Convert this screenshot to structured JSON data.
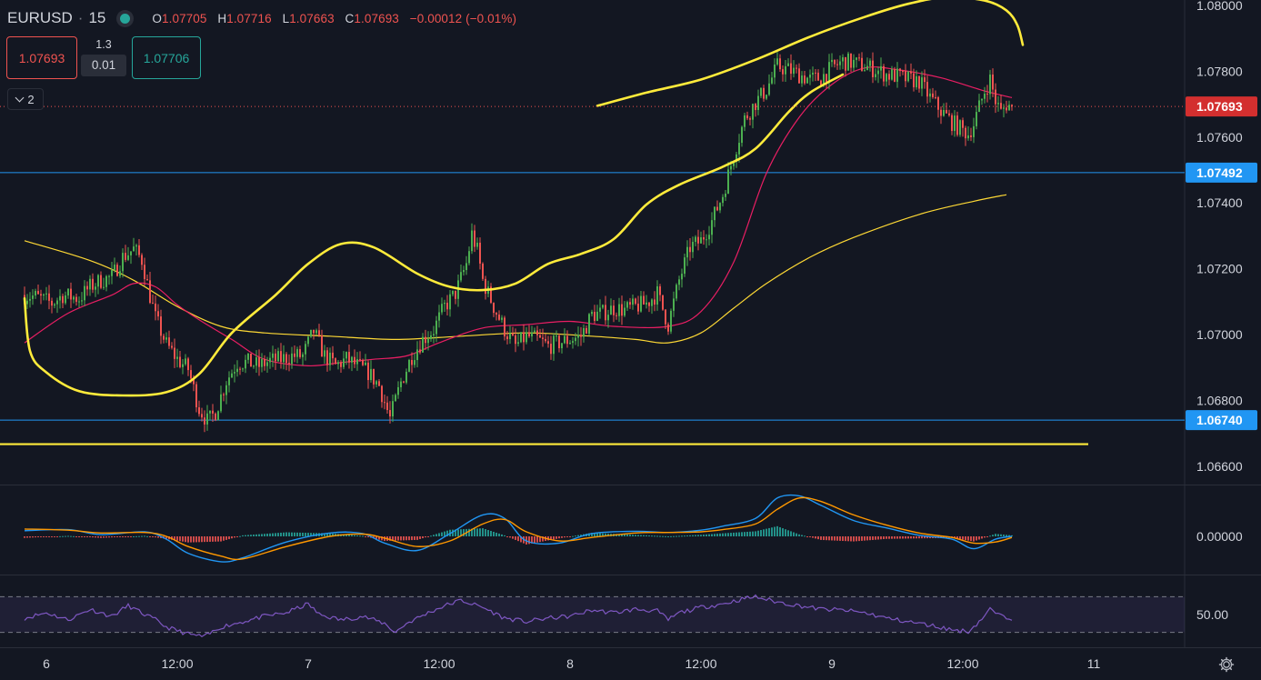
{
  "header": {
    "symbol": "EURUSD",
    "interval": "15",
    "ohlc": {
      "o_key": "O",
      "o": "1.07705",
      "h_key": "H",
      "h": "1.07716",
      "l_key": "L",
      "l": "1.07663",
      "c_key": "C",
      "c": "1.07693",
      "change": "−0.00012 (−0.01%)"
    },
    "bid": "1.07693",
    "spread_top": "1.3",
    "spread_bottom": "0.01",
    "ask": "1.07706",
    "indicators_collapsed": "2"
  },
  "colors": {
    "background": "#131722",
    "up": "#26a69a",
    "up_candle": "#4caf50",
    "down": "#ef5350",
    "drawing": "#ffeb3b",
    "hline": "#2196f3",
    "ma_fast": "#e91e63",
    "ma_slow": "#fdd835",
    "macd": "#2196f3",
    "signal": "#ff9800",
    "rsi": "#7e57c2"
  },
  "icons": {
    "settings": "gear-icon",
    "collapse": "chevron-down-icon"
  },
  "chart_data": [
    {
      "type": "candlestick",
      "title": "",
      "y_ticks": [
        "1.08000",
        "1.07800",
        "1.07600",
        "1.07400",
        "1.07200",
        "1.07000",
        "1.06800",
        "1.06600"
      ],
      "ylim": [
        1.0652,
        1.0801
      ],
      "x_ticks": [
        {
          "label": "6",
          "t": 0.0
        },
        {
          "label": "12:00",
          "t": 12.0
        },
        {
          "label": "7",
          "t": 24.0
        },
        {
          "label": "12:00",
          "t": 36.0
        },
        {
          "label": "8",
          "t": 48.0
        },
        {
          "label": "12:00",
          "t": 60.0
        },
        {
          "label": "9",
          "t": 72.0
        },
        {
          "label": "12:00",
          "t": 84.0
        },
        {
          "label": "11",
          "t": 96.0
        }
      ],
      "last_price": {
        "label": "1.07693",
        "value": 1.07693
      },
      "horizontal_lines": [
        {
          "label": "1.07492",
          "value": 1.07492
        },
        {
          "label": "1.06740",
          "value": 1.0674
        }
      ],
      "support_line_value": 1.06667,
      "price_path": [
        [
          -2.0,
          1.0712
        ],
        [
          -1.0,
          1.07115
        ],
        [
          0.5,
          1.07095
        ],
        [
          1.5,
          1.0712
        ],
        [
          3.0,
          1.0711
        ],
        [
          4.0,
          1.07145
        ],
        [
          5.0,
          1.07165
        ],
        [
          6.0,
          1.07175
        ],
        [
          7.0,
          1.07235
        ],
        [
          8.0,
          1.0726
        ],
        [
          8.8,
          1.07225
        ],
        [
          9.3,
          1.07145
        ],
        [
          10.0,
          1.0705
        ],
        [
          11.0,
          1.0697
        ],
        [
          12.0,
          1.06925
        ],
        [
          13.0,
          1.06895
        ],
        [
          14.0,
          1.06775
        ],
        [
          14.8,
          1.06735
        ],
        [
          15.5,
          1.06765
        ],
        [
          16.5,
          1.0686
        ],
        [
          17.5,
          1.06915
        ],
        [
          18.5,
          1.06915
        ],
        [
          19.5,
          1.06905
        ],
        [
          20.5,
          1.0692
        ],
        [
          21.5,
          1.06925
        ],
        [
          22.5,
          1.06935
        ],
        [
          23.5,
          1.06935
        ],
        [
          24.5,
          1.0701
        ],
        [
          25.5,
          1.06935
        ],
        [
          26.5,
          1.06905
        ],
        [
          27.5,
          1.06925
        ],
        [
          28.5,
          1.06905
        ],
        [
          29.5,
          1.06885
        ],
        [
          30.5,
          1.06845
        ],
        [
          31.5,
          1.06745
        ],
        [
          32.5,
          1.06855
        ],
        [
          33.5,
          1.06935
        ],
        [
          34.5,
          1.06985
        ],
        [
          35.5,
          1.07015
        ],
        [
          36.5,
          1.07085
        ],
        [
          37.5,
          1.07125
        ],
        [
          38.5,
          1.07215
        ],
        [
          39.0,
          1.07305
        ],
        [
          39.5,
          1.07255
        ],
        [
          40.0,
          1.07165
        ],
        [
          41.0,
          1.07085
        ],
        [
          42.0,
          1.07015
        ],
        [
          43.0,
          1.06965
        ],
        [
          44.0,
          1.06995
        ],
        [
          45.0,
          1.06985
        ],
        [
          46.0,
          1.06965
        ],
        [
          47.0,
          1.06975
        ],
        [
          48.0,
          1.06985
        ],
        [
          49.0,
          1.06995
        ],
        [
          50.0,
          1.0706
        ],
        [
          51.0,
          1.07065
        ],
        [
          52.0,
          1.0708
        ],
        [
          53.0,
          1.07075
        ],
        [
          54.0,
          1.07085
        ],
        [
          55.0,
          1.07095
        ],
        [
          56.0,
          1.07125
        ],
        [
          57.0,
          1.0703
        ],
        [
          58.0,
          1.07165
        ],
        [
          59.0,
          1.07265
        ],
        [
          60.0,
          1.07285
        ],
        [
          61.0,
          1.07345
        ],
        [
          62.0,
          1.07425
        ],
        [
          63.0,
          1.07545
        ],
        [
          64.0,
          1.07655
        ],
        [
          65.0,
          1.07705
        ],
        [
          66.0,
          1.07745
        ],
        [
          67.0,
          1.07815
        ],
        [
          68.0,
          1.07805
        ],
        [
          69.0,
          1.0779
        ],
        [
          70.0,
          1.07775
        ],
        [
          71.0,
          1.0778
        ],
        [
          72.0,
          1.0781
        ],
        [
          73.0,
          1.0783
        ],
        [
          74.0,
          1.07825
        ],
        [
          75.0,
          1.07815
        ],
        [
          76.0,
          1.07805
        ],
        [
          77.0,
          1.0779
        ],
        [
          78.0,
          1.07785
        ],
        [
          79.0,
          1.07775
        ],
        [
          80.0,
          1.0777
        ],
        [
          81.0,
          1.0772
        ],
        [
          82.0,
          1.0768
        ],
        [
          83.0,
          1.07645
        ],
        [
          84.0,
          1.0762
        ],
        [
          84.5,
          1.0761
        ],
        [
          85.0,
          1.0764
        ],
        [
          86.0,
          1.0774
        ],
        [
          86.5,
          1.07775
        ],
        [
          87.0,
          1.0771
        ],
        [
          87.5,
          1.07675
        ],
        [
          88.0,
          1.077
        ],
        [
          88.5,
          1.07693
        ]
      ],
      "ma_fast": [
        [
          -2.0,
          1.06975
        ],
        [
          2.0,
          1.07065
        ],
        [
          6.0,
          1.0712
        ],
        [
          8.0,
          1.07155
        ],
        [
          10.0,
          1.07145
        ],
        [
          12.0,
          1.0709
        ],
        [
          14.0,
          1.07045
        ],
        [
          17.0,
          1.06985
        ],
        [
          20.0,
          1.06925
        ],
        [
          24.0,
          1.06905
        ],
        [
          27.0,
          1.06915
        ],
        [
          30.0,
          1.06925
        ],
        [
          33.0,
          1.06935
        ],
        [
          36.0,
          1.06975
        ],
        [
          40.0,
          1.0702
        ],
        [
          44.0,
          1.0703
        ],
        [
          48.0,
          1.0704
        ],
        [
          52.0,
          1.07025
        ],
        [
          57.0,
          1.07025
        ],
        [
          60.0,
          1.0707
        ],
        [
          63.0,
          1.0722
        ],
        [
          66.0,
          1.0749
        ],
        [
          69.0,
          1.0766
        ],
        [
          72.0,
          1.0776
        ],
        [
          75.0,
          1.0781
        ],
        [
          78.0,
          1.07805
        ],
        [
          82.0,
          1.0778
        ],
        [
          86.0,
          1.0774
        ],
        [
          88.5,
          1.0772
        ]
      ],
      "ma_slow": [
        [
          -2.0,
          1.07285
        ],
        [
          4.0,
          1.07225
        ],
        [
          8.0,
          1.07165
        ],
        [
          12.0,
          1.07085
        ],
        [
          16.0,
          1.07025
        ],
        [
          20.0,
          1.07005
        ],
        [
          26.0,
          1.06995
        ],
        [
          32.0,
          1.06985
        ],
        [
          38.0,
          1.06995
        ],
        [
          44.0,
          1.07005
        ],
        [
          50.0,
          1.06995
        ],
        [
          54.0,
          1.06985
        ],
        [
          57.0,
          1.06975
        ],
        [
          60.0,
          1.07005
        ],
        [
          63.0,
          1.0708
        ],
        [
          66.0,
          1.07155
        ],
        [
          70.0,
          1.07235
        ],
        [
          74.0,
          1.07295
        ],
        [
          80.0,
          1.07365
        ],
        [
          85.0,
          1.07405
        ],
        [
          88.0,
          1.07425
        ]
      ],
      "drawing_curve": [
        [
          -2.0,
          1.0711
        ],
        [
          -1.5,
          1.0695
        ],
        [
          0.0,
          1.06885
        ],
        [
          3.0,
          1.06828
        ],
        [
          7.0,
          1.06815
        ],
        [
          11.0,
          1.06825
        ],
        [
          14.0,
          1.0688
        ],
        [
          17.0,
          1.07005
        ],
        [
          21.0,
          1.0712
        ],
        [
          24.0,
          1.07215
        ],
        [
          27.0,
          1.07275
        ],
        [
          30.0,
          1.07265
        ],
        [
          34.0,
          1.07185
        ],
        [
          37.0,
          1.07145
        ],
        [
          40.0,
          1.07135
        ],
        [
          43.0,
          1.07155
        ],
        [
          46.0,
          1.07215
        ],
        [
          49.0,
          1.07245
        ],
        [
          52.0,
          1.0729
        ],
        [
          55.0,
          1.07395
        ],
        [
          58.0,
          1.07455
        ],
        [
          62.0,
          1.0751
        ],
        [
          65.0,
          1.07565
        ],
        [
          68.0,
          1.07675
        ],
        [
          70.0,
          1.07735
        ],
        [
          73.0,
          1.0779
        ]
      ],
      "drawing_curve_top": [
        [
          50.5,
          1.07695
        ],
        [
          55.0,
          1.07735
        ],
        [
          60.0,
          1.07775
        ],
        [
          65.0,
          1.07835
        ],
        [
          70.0,
          1.07905
        ],
        [
          75.0,
          1.07965
        ],
        [
          79.0,
          1.08005
        ],
        [
          82.5,
          1.08025
        ],
        [
          86.0,
          1.08015
        ],
        [
          88.0,
          1.07985
        ],
        [
          89.0,
          1.0794
        ],
        [
          89.5,
          1.0788
        ]
      ]
    },
    {
      "type": "line",
      "title": "",
      "y_ticks": [
        "0.00000"
      ],
      "series": [],
      "macd": [
        [
          -2.0,
          0.1
        ],
        [
          2.0,
          0.12
        ],
        [
          5.0,
          0.03
        ],
        [
          9.0,
          0.08
        ],
        [
          11.0,
          -0.05
        ],
        [
          13.0,
          -0.3
        ],
        [
          16.0,
          -0.45
        ],
        [
          18.0,
          -0.38
        ],
        [
          22.0,
          -0.1
        ],
        [
          26.0,
          0.06
        ],
        [
          29.0,
          0.05
        ],
        [
          31.0,
          -0.12
        ],
        [
          34.0,
          -0.25
        ],
        [
          37.0,
          0.05
        ],
        [
          40.0,
          0.38
        ],
        [
          42.0,
          0.32
        ],
        [
          44.0,
          -0.08
        ],
        [
          47.0,
          -0.12
        ],
        [
          50.0,
          0.05
        ],
        [
          54.0,
          0.09
        ],
        [
          57.0,
          0.07
        ],
        [
          60.0,
          0.11
        ],
        [
          62.0,
          0.18
        ],
        [
          65.0,
          0.32
        ],
        [
          67.0,
          0.68
        ],
        [
          69.0,
          0.72
        ],
        [
          71.0,
          0.55
        ],
        [
          74.0,
          0.28
        ],
        [
          77.0,
          0.15
        ],
        [
          80.0,
          0.02
        ],
        [
          83.0,
          -0.05
        ],
        [
          85.0,
          -0.22
        ],
        [
          87.0,
          -0.05
        ],
        [
          88.5,
          0.0
        ]
      ],
      "signal": [
        [
          -2.0,
          0.13
        ],
        [
          2.0,
          0.11
        ],
        [
          5.0,
          0.06
        ],
        [
          9.0,
          0.07
        ],
        [
          11.0,
          0.0
        ],
        [
          13.0,
          -0.18
        ],
        [
          16.0,
          -0.35
        ],
        [
          18.0,
          -0.4
        ],
        [
          22.0,
          -0.18
        ],
        [
          26.0,
          0.0
        ],
        [
          29.0,
          0.04
        ],
        [
          31.0,
          -0.03
        ],
        [
          34.0,
          -0.18
        ],
        [
          37.0,
          -0.08
        ],
        [
          40.0,
          0.22
        ],
        [
          42.0,
          0.3
        ],
        [
          44.0,
          0.08
        ],
        [
          47.0,
          -0.08
        ],
        [
          50.0,
          -0.02
        ],
        [
          54.0,
          0.06
        ],
        [
          57.0,
          0.07
        ],
        [
          60.0,
          0.08
        ],
        [
          62.0,
          0.12
        ],
        [
          65.0,
          0.22
        ],
        [
          67.0,
          0.48
        ],
        [
          69.0,
          0.68
        ],
        [
          71.0,
          0.62
        ],
        [
          74.0,
          0.38
        ],
        [
          77.0,
          0.2
        ],
        [
          80.0,
          0.06
        ],
        [
          83.0,
          -0.02
        ],
        [
          85.0,
          -0.12
        ],
        [
          87.0,
          -0.1
        ],
        [
          88.5,
          -0.02
        ]
      ]
    },
    {
      "type": "line",
      "title": "",
      "y_ticks": [
        "50.00"
      ],
      "bands": [
        70,
        30
      ],
      "rsi": [
        [
          -2.0,
          46
        ],
        [
          0.0,
          52
        ],
        [
          2.0,
          44
        ],
        [
          4.0,
          56
        ],
        [
          6.0,
          48
        ],
        [
          7.5,
          60
        ],
        [
          9.0,
          50
        ],
        [
          10.0,
          44
        ],
        [
          11.0,
          36
        ],
        [
          13.0,
          28
        ],
        [
          14.5,
          25
        ],
        [
          16.0,
          36
        ],
        [
          18.0,
          42
        ],
        [
          20.0,
          48
        ],
        [
          22.0,
          52
        ],
        [
          24.0,
          62
        ],
        [
          25.0,
          50
        ],
        [
          27.0,
          44
        ],
        [
          29.0,
          48
        ],
        [
          31.0,
          40
        ],
        [
          32.0,
          30
        ],
        [
          33.0,
          40
        ],
        [
          35.0,
          52
        ],
        [
          36.5,
          60
        ],
        [
          38.0,
          66
        ],
        [
          39.0,
          62
        ],
        [
          40.0,
          58
        ],
        [
          42.0,
          46
        ],
        [
          44.0,
          42
        ],
        [
          46.0,
          46
        ],
        [
          48.0,
          48
        ],
        [
          50.0,
          55
        ],
        [
          52.0,
          52
        ],
        [
          54.0,
          56
        ],
        [
          56.0,
          54
        ],
        [
          57.0,
          44
        ],
        [
          58.0,
          52
        ],
        [
          60.0,
          58
        ],
        [
          62.0,
          62
        ],
        [
          64.0,
          68
        ],
        [
          65.0,
          70
        ],
        [
          67.0,
          64
        ],
        [
          69.0,
          60
        ],
        [
          71.0,
          56
        ],
        [
          73.0,
          55
        ],
        [
          75.0,
          52
        ],
        [
          77.0,
          46
        ],
        [
          79.0,
          42
        ],
        [
          81.0,
          38
        ],
        [
          83.0,
          33
        ],
        [
          84.5,
          31
        ],
        [
          85.5,
          42
        ],
        [
          86.5,
          56
        ],
        [
          87.5,
          48
        ],
        [
          88.5,
          46
        ]
      ]
    }
  ]
}
